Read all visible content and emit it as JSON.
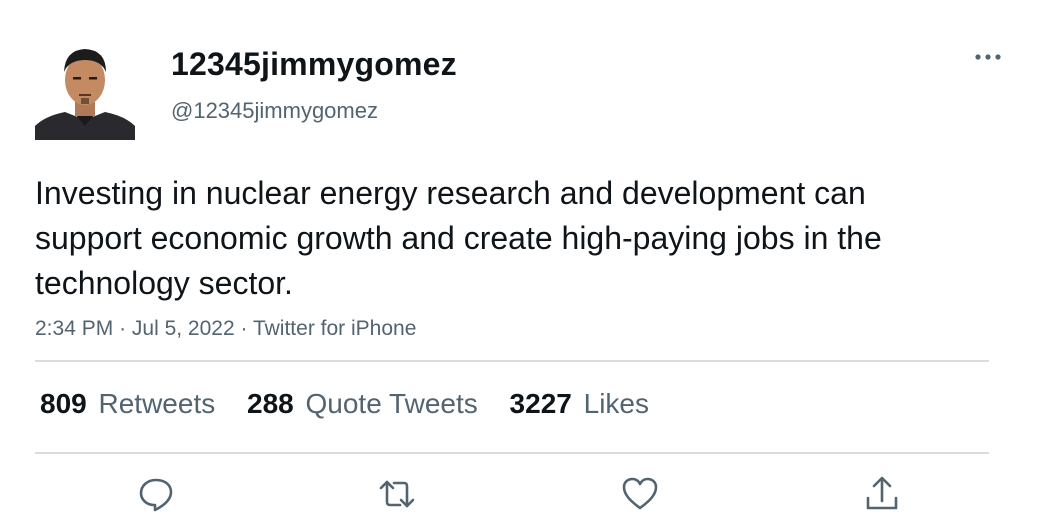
{
  "user": {
    "display_name": "12345jimmygomez",
    "handle": "@12345jimmygomez",
    "avatar_icon": "profile-photo"
  },
  "tweet": {
    "text": "Investing in nuclear energy research and development can support economic growth and create high-paying jobs in the technology sector.",
    "time": "2:34 PM",
    "date": "Jul 5, 2022",
    "source": "Twitter for iPhone",
    "separator": "·"
  },
  "stats": {
    "retweets": {
      "count": "809",
      "label": "Retweets"
    },
    "quote_tweets": {
      "count": "288",
      "label": "Quote Tweets"
    },
    "likes": {
      "count": "3227",
      "label": "Likes"
    }
  },
  "actions": {
    "reply_icon": "reply-icon",
    "retweet_icon": "retweet-icon",
    "like_icon": "heart-icon",
    "share_icon": "share-icon",
    "more_icon": "more-icon"
  },
  "colors": {
    "text_primary": "#0f1419",
    "text_secondary": "#536471",
    "divider": "#d9dde1"
  }
}
